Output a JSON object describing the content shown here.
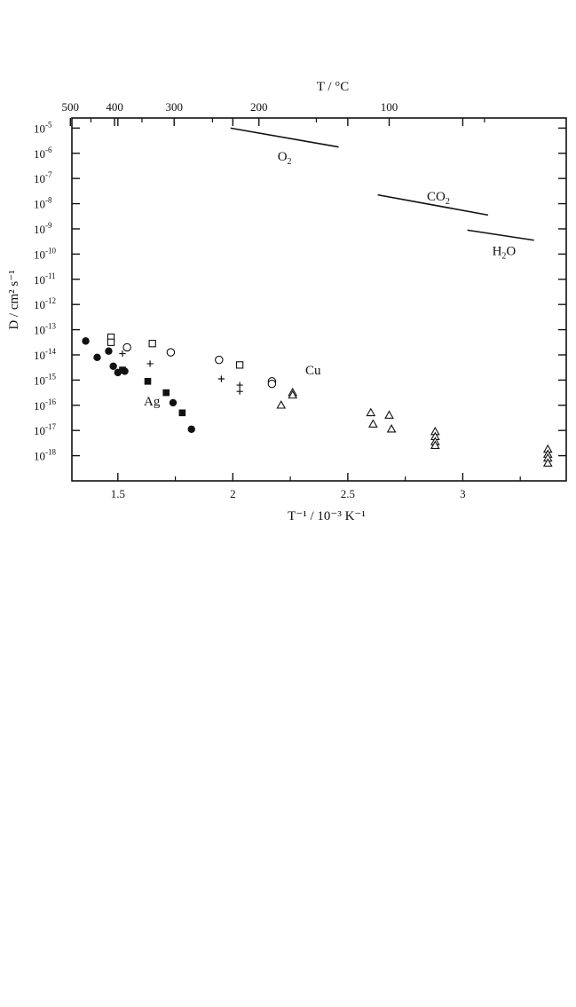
{
  "chart_data": {
    "type": "scatter",
    "xlabel": "T⁻¹ / 10⁻³ K⁻¹",
    "ylabel": "D / cm² s⁻¹",
    "top_axis_label": "T / °C",
    "xlim": [
      1.3,
      3.45
    ],
    "ylim_log10": [
      -19,
      -4.6
    ],
    "log_y": true,
    "x_ticks": [
      {
        "value": 1.5,
        "label": "1.5"
      },
      {
        "value": 2,
        "label": "2"
      },
      {
        "value": 2.5,
        "label": "2.5"
      },
      {
        "value": 3,
        "label": "3"
      }
    ],
    "y_ticks": [
      {
        "exp": -5,
        "base": "10",
        "sup": "-5"
      },
      {
        "exp": -6,
        "base": "10",
        "sup": "-6"
      },
      {
        "exp": -7,
        "base": "10",
        "sup": "-7"
      },
      {
        "exp": -8,
        "base": "10",
        "sup": "-8"
      },
      {
        "exp": -9,
        "base": "10",
        "sup": "-9"
      },
      {
        "exp": -10,
        "base": "10",
        "sup": "-10"
      },
      {
        "exp": -11,
        "base": "10",
        "sup": "-11"
      },
      {
        "exp": -12,
        "base": "10",
        "sup": "-12"
      },
      {
        "exp": -13,
        "base": "10",
        "sup": "-13"
      },
      {
        "exp": -14,
        "base": "10",
        "sup": "-14"
      },
      {
        "exp": -15,
        "base": "10",
        "sup": "-15"
      },
      {
        "exp": -16,
        "base": "10",
        "sup": "-16"
      },
      {
        "exp": -17,
        "base": "10",
        "sup": "-17"
      },
      {
        "exp": -18,
        "base": "10",
        "sup": "-18"
      }
    ],
    "top_ticks": [
      {
        "celsius": 500,
        "label": "500"
      },
      {
        "celsius": 400,
        "label": "400"
      },
      {
        "celsius": 300,
        "label": "300"
      },
      {
        "celsius": 200,
        "label": "200"
      },
      {
        "celsius": 100,
        "label": "100"
      }
    ],
    "top_minor_ticks_celsius": [
      450,
      350,
      250,
      150,
      50
    ],
    "series": [
      {
        "name": "Ag",
        "marker": "filled-circle",
        "points": [
          [
            1.36,
            -13.45
          ],
          [
            1.41,
            -14.1
          ],
          [
            1.46,
            -13.85
          ],
          [
            1.48,
            -14.45
          ],
          [
            1.5,
            -14.7
          ],
          [
            1.53,
            -14.65
          ],
          [
            1.74,
            -15.9
          ],
          [
            1.82,
            -16.95
          ]
        ]
      },
      {
        "name": "",
        "marker": "filled-square",
        "points": [
          [
            1.52,
            -14.6
          ],
          [
            1.63,
            -15.05
          ],
          [
            1.71,
            -15.5
          ],
          [
            1.78,
            -16.3
          ]
        ]
      },
      {
        "name": "",
        "marker": "open-square",
        "points": [
          [
            1.47,
            -13.3
          ],
          [
            1.47,
            -13.5
          ],
          [
            1.65,
            -13.55
          ],
          [
            2.03,
            -14.4
          ]
        ]
      },
      {
        "name": "Cu",
        "marker": "open-circle",
        "points": [
          [
            1.54,
            -13.7
          ],
          [
            1.73,
            -13.9
          ],
          [
            1.94,
            -14.2
          ],
          [
            2.17,
            -15.05
          ],
          [
            2.17,
            -15.15
          ]
        ]
      },
      {
        "name": "",
        "marker": "plus",
        "points": [
          [
            1.52,
            -13.95
          ],
          [
            1.64,
            -14.35
          ],
          [
            1.95,
            -14.95
          ],
          [
            2.03,
            -15.2
          ],
          [
            2.03,
            -15.45
          ]
        ]
      },
      {
        "name": "",
        "marker": "open-triangle",
        "points": [
          [
            2.21,
            -16.0
          ],
          [
            2.26,
            -15.5
          ],
          [
            2.26,
            -15.6
          ],
          [
            2.6,
            -16.3
          ],
          [
            2.61,
            -16.75
          ],
          [
            2.68,
            -16.4
          ],
          [
            2.69,
            -16.95
          ],
          [
            2.88,
            -17.05
          ],
          [
            2.88,
            -17.25
          ],
          [
            2.88,
            -17.45
          ],
          [
            2.88,
            -17.6
          ],
          [
            3.37,
            -17.75
          ],
          [
            3.37,
            -17.95
          ],
          [
            3.37,
            -18.1
          ],
          [
            3.37,
            -18.3
          ]
        ]
      }
    ],
    "lines": [
      {
        "name": "O₂",
        "label_base": "O",
        "label_sub": "2",
        "x": [
          1.99,
          2.46
        ],
        "log10_y": [
          -5.0,
          -5.75
        ]
      },
      {
        "name": "CO₂",
        "label_base": "CO",
        "label_sub": "2",
        "x": [
          2.63,
          3.11
        ],
        "log10_y": [
          -7.65,
          -8.45
        ]
      },
      {
        "name": "H₂O",
        "label_base": "H",
        "label_sub": "2",
        "label_tail": "O",
        "x": [
          3.02,
          3.31
        ],
        "log10_y": [
          -9.05,
          -9.45
        ]
      }
    ],
    "grid": false,
    "legend": "none"
  }
}
